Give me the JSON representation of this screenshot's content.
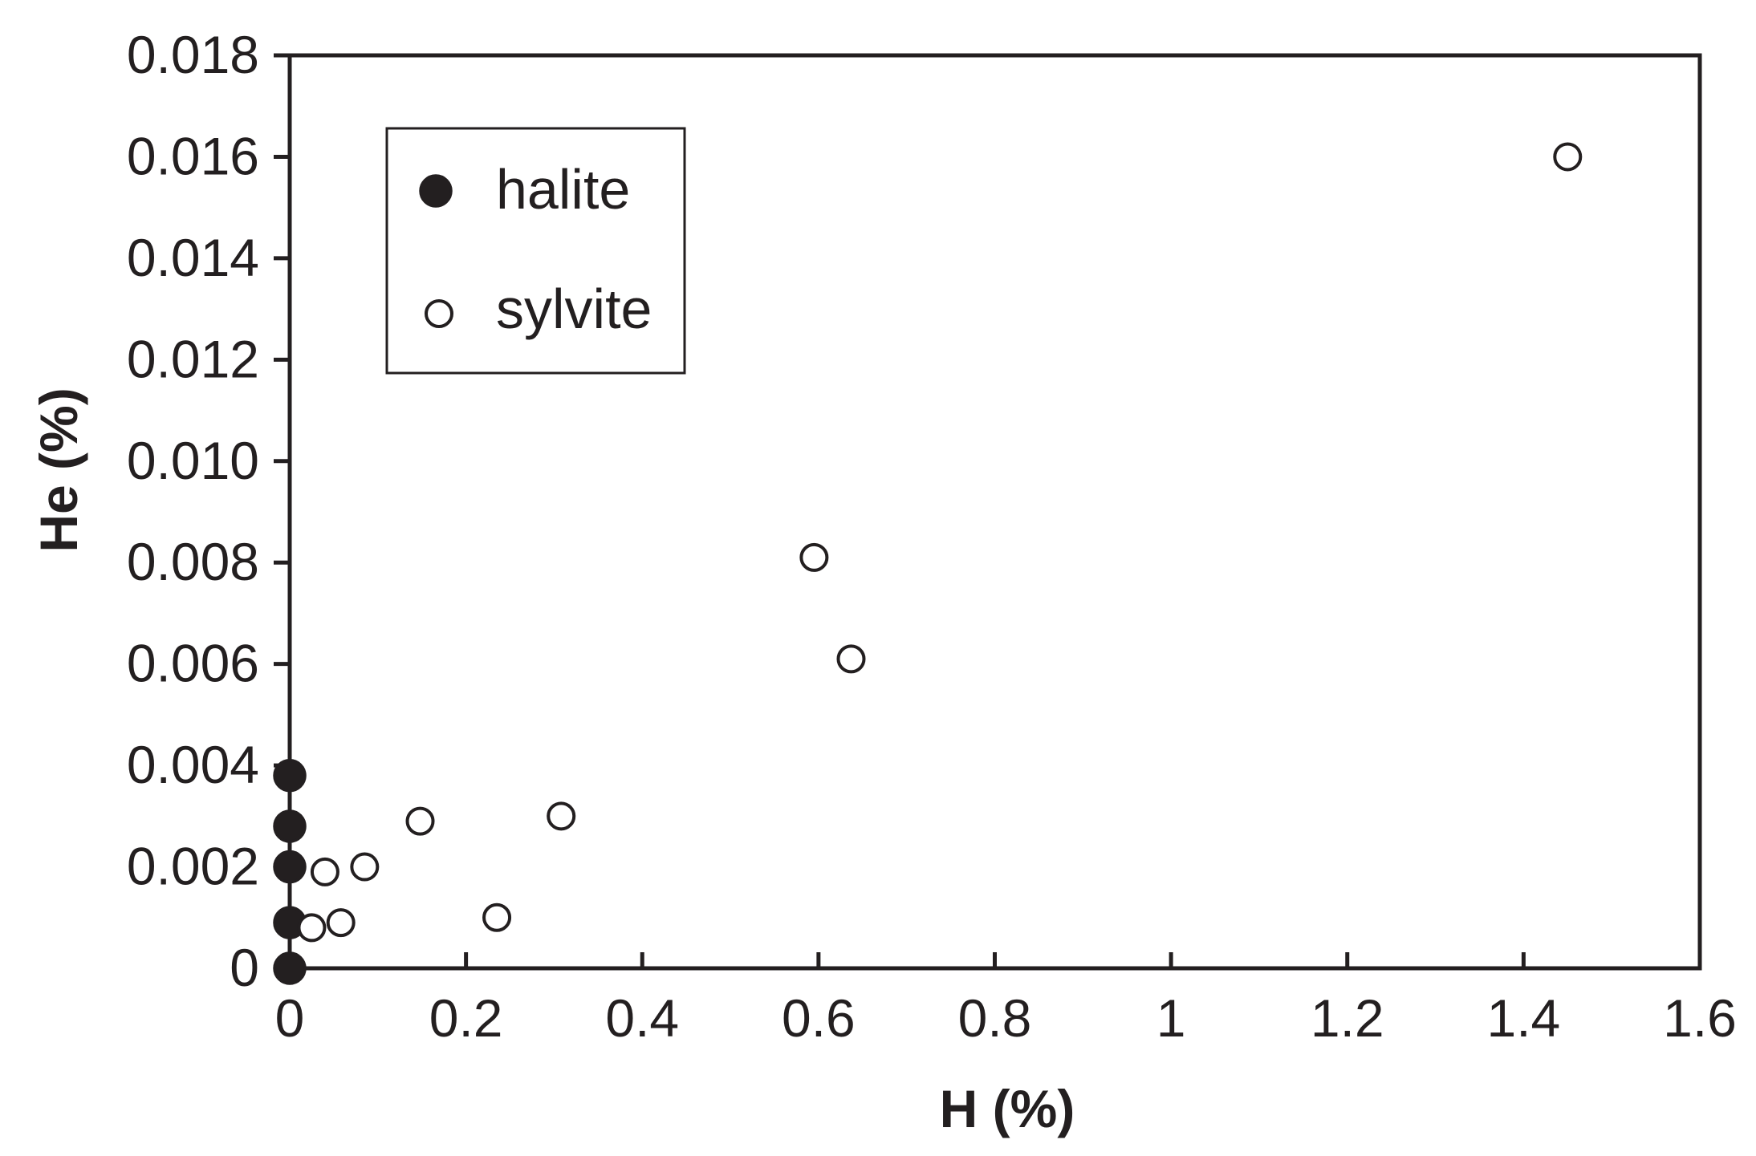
{
  "chart_data": {
    "type": "scatter",
    "title": "",
    "xlabel": "H (%)",
    "ylabel": "He (%)",
    "xlim": [
      0,
      1.6
    ],
    "ylim": [
      0,
      0.018
    ],
    "x_ticks": [
      "0",
      "0.2",
      "0.4",
      "0.6",
      "0.8",
      "1",
      "1.2",
      "1.4",
      "1.6"
    ],
    "y_ticks": [
      "0",
      "0.002",
      "0.004",
      "0.006",
      "0.008",
      "0.010",
      "0.012",
      "0.014",
      "0.016",
      "0.018"
    ],
    "grid": false,
    "legend_position": "top-left",
    "series": [
      {
        "name": "halite",
        "marker": "filled-circle",
        "color": "#231f20",
        "points": [
          {
            "x": 0,
            "y": 0
          },
          {
            "x": 0,
            "y": 0.0009
          },
          {
            "x": 0,
            "y": 0.002
          },
          {
            "x": 0,
            "y": 0.0028
          },
          {
            "x": 0,
            "y": 0.0038
          }
        ]
      },
      {
        "name": "sylvite",
        "marker": "open-circle",
        "color": "#231f20",
        "points": [
          {
            "x": 0.025,
            "y": 0.0008
          },
          {
            "x": 0.058,
            "y": 0.0009
          },
          {
            "x": 0.04,
            "y": 0.0019
          },
          {
            "x": 0.085,
            "y": 0.002
          },
          {
            "x": 0.148,
            "y": 0.0029
          },
          {
            "x": 0.235,
            "y": 0.001
          },
          {
            "x": 0.308,
            "y": 0.003
          },
          {
            "x": 0.595,
            "y": 0.0081
          },
          {
            "x": 0.637,
            "y": 0.0061
          },
          {
            "x": 1.45,
            "y": 0.016
          }
        ]
      }
    ]
  }
}
